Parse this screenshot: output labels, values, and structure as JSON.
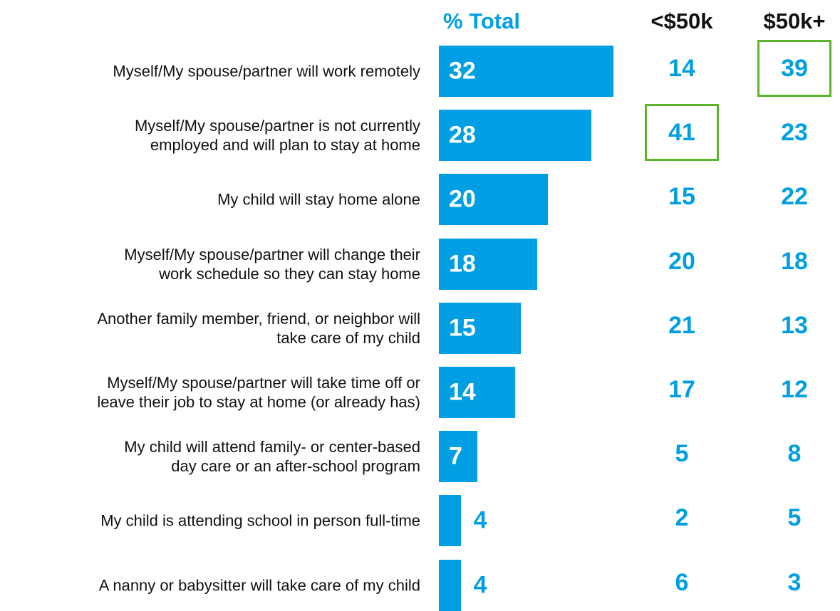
{
  "chart_data": {
    "type": "bar",
    "categories": [
      "Myself/My spouse/partner will work remotely",
      "Myself/My spouse/partner is not currently\nemployed and will plan to stay at home",
      "My child will stay home alone",
      "Myself/My spouse/partner will change their\nwork schedule so they can stay home",
      "Another family member, friend, or neighbor will\ntake care of my child",
      "Myself/My spouse/partner will take time off or\nleave their job to stay at home (or already has)",
      "My child will attend family- or center-based\nday care or an after-school program",
      "My child is attending school in person full-time",
      "A nanny or babysitter will take care of my child"
    ],
    "series": [
      {
        "name": "% Total",
        "color": "#009fe3",
        "values": [
          32,
          28,
          20,
          18,
          15,
          14,
          7,
          4,
          4
        ]
      },
      {
        "name": "<$50k",
        "color": "#009fe3",
        "values": [
          14,
          41,
          15,
          20,
          21,
          17,
          5,
          2,
          6
        ],
        "highlight": 1
      },
      {
        "name": "$50k+",
        "color": "#009fe3",
        "values": [
          39,
          23,
          22,
          18,
          13,
          12,
          8,
          5,
          3
        ],
        "highlight": 0
      }
    ],
    "highlight_color": "#5ab52a"
  }
}
